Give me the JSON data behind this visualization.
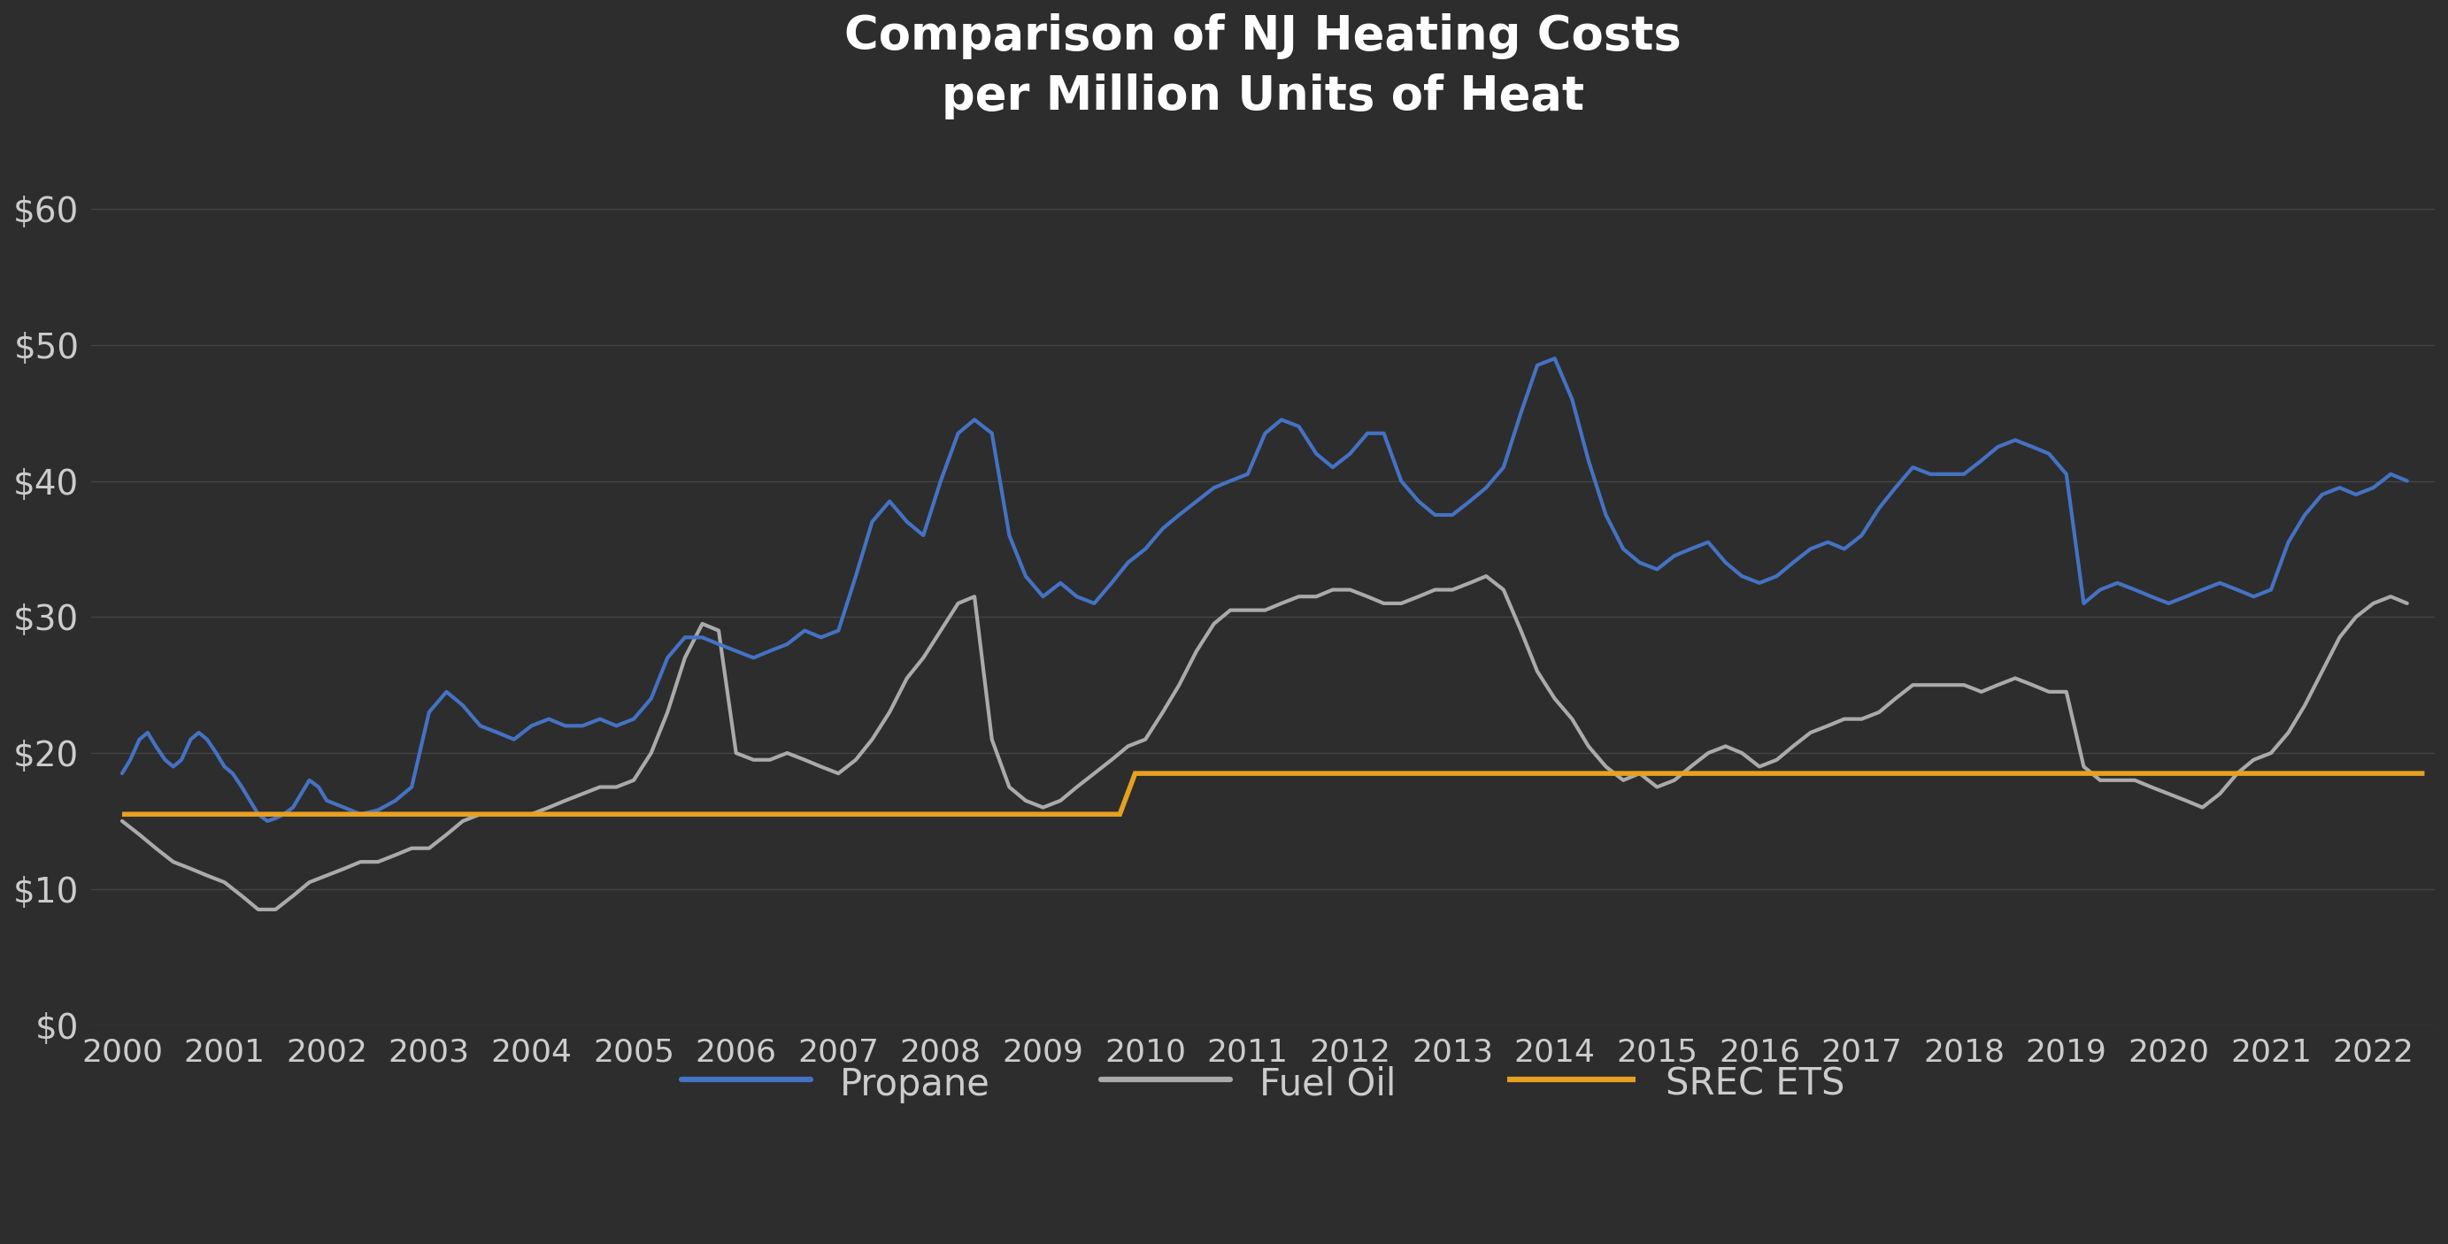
{
  "title": "Comparison of NJ Heating Costs\nper Million Units of Heat",
  "background_color": "#2d2d2d",
  "plot_bg_color": "#2d2d2d",
  "title_color": "#ffffff",
  "tick_color": "#cccccc",
  "grid_color": "#444444",
  "ylim": [
    0,
    65
  ],
  "yticks": [
    0,
    10,
    20,
    30,
    40,
    50,
    60
  ],
  "ytick_labels": [
    "$0",
    "$10",
    "$20",
    "$30",
    "$40",
    "$50",
    "$60"
  ],
  "xticks": [
    2000,
    2001,
    2002,
    2003,
    2004,
    2005,
    2006,
    2007,
    2008,
    2009,
    2010,
    2011,
    2012,
    2013,
    2014,
    2015,
    2016,
    2017,
    2018,
    2019,
    2020,
    2021,
    2022
  ],
  "legend_labels": [
    "Propane",
    "Fuel Oil",
    "SREC ETS"
  ],
  "propane_color": "#4472c4",
  "fuel_oil_color": "#aaaaaa",
  "srec_color": "#e8a020",
  "line_width": 3.0,
  "propane_x": [
    2000.0,
    2000.08,
    2000.17,
    2000.25,
    2000.33,
    2000.42,
    2000.5,
    2000.58,
    2000.67,
    2000.75,
    2000.83,
    2000.92,
    2001.0,
    2001.08,
    2001.17,
    2001.25,
    2001.33,
    2001.42,
    2001.5,
    2001.58,
    2001.67,
    2001.75,
    2001.83,
    2001.92,
    2002.0,
    2002.17,
    2002.33,
    2002.5,
    2002.67,
    2002.83,
    2003.0,
    2003.17,
    2003.33,
    2003.5,
    2003.67,
    2003.83,
    2004.0,
    2004.17,
    2004.33,
    2004.5,
    2004.67,
    2004.83,
    2005.0,
    2005.17,
    2005.33,
    2005.5,
    2005.67,
    2005.83,
    2006.0,
    2006.17,
    2006.33,
    2006.5,
    2006.67,
    2006.83,
    2007.0,
    2007.17,
    2007.33,
    2007.5,
    2007.67,
    2007.83,
    2008.0,
    2008.17,
    2008.33,
    2008.5,
    2008.67,
    2008.83,
    2009.0,
    2009.17,
    2009.33,
    2009.5,
    2009.67,
    2009.83,
    2010.0,
    2010.17,
    2010.33,
    2010.5,
    2010.67,
    2010.83,
    2011.0,
    2011.17,
    2011.33,
    2011.5,
    2011.67,
    2011.83,
    2012.0,
    2012.17,
    2012.33,
    2012.5,
    2012.67,
    2012.83,
    2013.0,
    2013.17,
    2013.33,
    2013.5,
    2013.67,
    2013.83,
    2014.0,
    2014.17,
    2014.33,
    2014.5,
    2014.67,
    2014.83,
    2015.0,
    2015.17,
    2015.33,
    2015.5,
    2015.67,
    2015.83,
    2016.0,
    2016.17,
    2016.33,
    2016.5,
    2016.67,
    2016.83,
    2017.0,
    2017.17,
    2017.33,
    2017.5,
    2017.67,
    2017.83,
    2018.0,
    2018.17,
    2018.33,
    2018.5,
    2018.67,
    2018.83,
    2019.0,
    2019.17,
    2019.33,
    2019.5,
    2019.67,
    2019.83,
    2020.0,
    2020.17,
    2020.33,
    2020.5,
    2020.67,
    2020.83,
    2021.0,
    2021.17,
    2021.33,
    2021.5,
    2021.67,
    2021.83,
    2022.0,
    2022.17,
    2022.33
  ],
  "propane_y": [
    18.5,
    19.5,
    21.0,
    21.5,
    20.5,
    19.5,
    19.0,
    19.5,
    21.0,
    21.5,
    21.0,
    20.0,
    19.0,
    18.5,
    17.5,
    16.5,
    15.5,
    15.0,
    15.2,
    15.5,
    16.0,
    17.0,
    18.0,
    17.5,
    16.5,
    16.0,
    15.5,
    15.8,
    16.5,
    17.5,
    23.0,
    24.5,
    23.5,
    22.0,
    21.5,
    21.0,
    22.0,
    22.5,
    22.0,
    22.0,
    22.5,
    22.0,
    22.5,
    24.0,
    27.0,
    28.5,
    28.5,
    28.0,
    27.5,
    27.0,
    27.5,
    28.0,
    29.0,
    28.5,
    29.0,
    33.0,
    37.0,
    38.5,
    37.0,
    36.0,
    40.0,
    43.5,
    44.5,
    43.5,
    36.0,
    33.0,
    31.5,
    32.5,
    31.5,
    31.0,
    32.5,
    34.0,
    35.0,
    36.5,
    37.5,
    38.5,
    39.5,
    40.0,
    40.5,
    43.5,
    44.5,
    44.0,
    42.0,
    41.0,
    42.0,
    43.5,
    43.5,
    40.0,
    38.5,
    37.5,
    37.5,
    38.5,
    39.5,
    41.0,
    45.0,
    48.5,
    49.0,
    46.0,
    41.5,
    37.5,
    35.0,
    34.0,
    33.5,
    34.5,
    35.0,
    35.5,
    34.0,
    33.0,
    32.5,
    33.0,
    34.0,
    35.0,
    35.5,
    35.0,
    36.0,
    38.0,
    39.5,
    41.0,
    40.5,
    40.5,
    40.5,
    41.5,
    42.5,
    43.0,
    42.5,
    42.0,
    40.5,
    31.0,
    32.0,
    32.5,
    32.0,
    31.5,
    31.0,
    31.5,
    32.0,
    32.5,
    32.0,
    31.5,
    32.0,
    35.5,
    37.5,
    39.0,
    39.5,
    39.0,
    39.5,
    40.5,
    40.0
  ],
  "fuel_oil_x": [
    2000.0,
    2000.17,
    2000.33,
    2000.5,
    2000.67,
    2000.83,
    2001.0,
    2001.17,
    2001.33,
    2001.5,
    2001.67,
    2001.83,
    2002.0,
    2002.17,
    2002.33,
    2002.5,
    2002.67,
    2002.83,
    2003.0,
    2003.17,
    2003.33,
    2003.5,
    2003.67,
    2003.83,
    2004.0,
    2004.17,
    2004.33,
    2004.5,
    2004.67,
    2004.83,
    2005.0,
    2005.17,
    2005.33,
    2005.5,
    2005.67,
    2005.83,
    2006.0,
    2006.17,
    2006.33,
    2006.5,
    2006.67,
    2006.83,
    2007.0,
    2007.17,
    2007.33,
    2007.5,
    2007.67,
    2007.83,
    2008.0,
    2008.17,
    2008.33,
    2008.5,
    2008.67,
    2008.83,
    2009.0,
    2009.17,
    2009.33,
    2009.5,
    2009.67,
    2009.83,
    2010.0,
    2010.17,
    2010.33,
    2010.5,
    2010.67,
    2010.83,
    2011.0,
    2011.17,
    2011.33,
    2011.5,
    2011.67,
    2011.83,
    2012.0,
    2012.17,
    2012.33,
    2012.5,
    2012.67,
    2012.83,
    2013.0,
    2013.17,
    2013.33,
    2013.5,
    2013.67,
    2013.83,
    2014.0,
    2014.17,
    2014.33,
    2014.5,
    2014.67,
    2014.83,
    2015.0,
    2015.17,
    2015.33,
    2015.5,
    2015.67,
    2015.83,
    2016.0,
    2016.17,
    2016.33,
    2016.5,
    2016.67,
    2016.83,
    2017.0,
    2017.17,
    2017.33,
    2017.5,
    2017.67,
    2017.83,
    2018.0,
    2018.17,
    2018.33,
    2018.5,
    2018.67,
    2018.83,
    2019.0,
    2019.17,
    2019.33,
    2019.5,
    2019.67,
    2019.83,
    2020.0,
    2020.17,
    2020.33,
    2020.5,
    2020.67,
    2020.83,
    2021.0,
    2021.17,
    2021.33,
    2021.5,
    2021.67,
    2021.83,
    2022.0,
    2022.17,
    2022.33
  ],
  "fuel_oil_y": [
    15.0,
    14.0,
    13.0,
    12.0,
    11.5,
    11.0,
    10.5,
    9.5,
    8.5,
    8.5,
    9.5,
    10.5,
    11.0,
    11.5,
    12.0,
    12.0,
    12.5,
    13.0,
    13.0,
    14.0,
    15.0,
    15.5,
    15.5,
    15.5,
    15.5,
    16.0,
    16.5,
    17.0,
    17.5,
    17.5,
    18.0,
    20.0,
    23.0,
    27.0,
    29.5,
    29.0,
    20.0,
    19.5,
    19.5,
    20.0,
    19.5,
    19.0,
    18.5,
    19.5,
    21.0,
    23.0,
    25.5,
    27.0,
    29.0,
    31.0,
    31.5,
    21.0,
    17.5,
    16.5,
    16.0,
    16.5,
    17.5,
    18.5,
    19.5,
    20.5,
    21.0,
    23.0,
    25.0,
    27.5,
    29.5,
    30.5,
    30.5,
    30.5,
    31.0,
    31.5,
    31.5,
    32.0,
    32.0,
    31.5,
    31.0,
    31.0,
    31.5,
    32.0,
    32.0,
    32.5,
    33.0,
    32.0,
    29.0,
    26.0,
    24.0,
    22.5,
    20.5,
    19.0,
    18.0,
    18.5,
    17.5,
    18.0,
    19.0,
    20.0,
    20.5,
    20.0,
    19.0,
    19.5,
    20.5,
    21.5,
    22.0,
    22.5,
    22.5,
    23.0,
    24.0,
    25.0,
    25.0,
    25.0,
    25.0,
    24.5,
    25.0,
    25.5,
    25.0,
    24.5,
    24.5,
    19.0,
    18.0,
    18.0,
    18.0,
    17.5,
    17.0,
    16.5,
    16.0,
    17.0,
    18.5,
    19.5,
    20.0,
    21.5,
    23.5,
    26.0,
    28.5,
    30.0,
    31.0,
    31.5,
    31.0
  ],
  "srec_x": [
    2000.0,
    2009.75,
    2009.9,
    2010.0,
    2022.5
  ],
  "srec_y": [
    15.5,
    15.5,
    18.5,
    18.5,
    18.5
  ]
}
